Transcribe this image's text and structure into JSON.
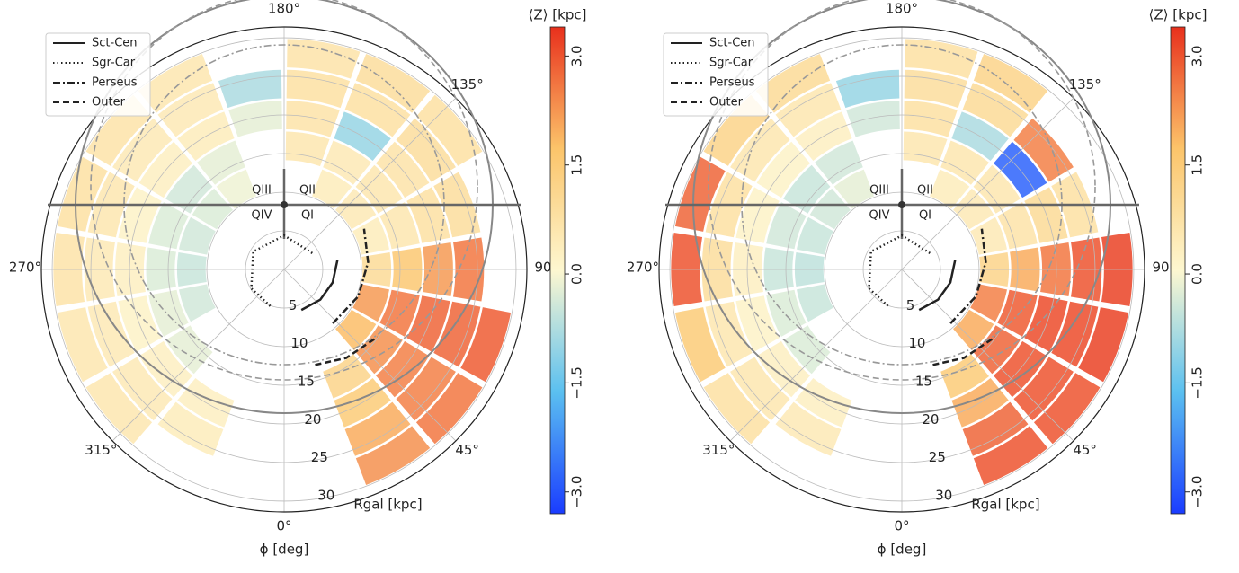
{
  "chart_data": [
    {
      "type": "polar-heatmap",
      "theta_label": "ϕ [deg]",
      "r_label": "Rgal [kpc]",
      "colorbar_label": "⟨Z⟩ [kpc]",
      "phi": [
        30,
        50,
        70,
        90,
        110,
        130,
        150,
        170,
        190,
        210,
        230,
        250,
        270,
        290,
        310,
        330
      ],
      "r": [
        12,
        16,
        20,
        24,
        28
      ],
      "values": [
        [
          null,
          1.2,
          1.5,
          2.0,
          2.3
        ],
        [
          1.8,
          2.3,
          2.5,
          2.5,
          2.6
        ],
        [
          2.2,
          2.6,
          2.8,
          2.8,
          2.9
        ],
        [
          1.0,
          1.6,
          2.2,
          2.6,
          null
        ],
        [
          0.4,
          0.6,
          0.8,
          0.9,
          null
        ],
        [
          0.5,
          0.6,
          0.7,
          0.9,
          0.8
        ],
        [
          0.4,
          0.5,
          -1.0,
          0.8,
          0.9
        ],
        [
          null,
          0.6,
          0.7,
          0.8,
          0.7
        ],
        [
          null,
          null,
          -0.2,
          -0.8,
          null
        ],
        [
          -0.1,
          -0.2,
          0.4,
          0.5,
          0.6
        ],
        [
          -0.3,
          -0.4,
          0.3,
          0.5,
          0.7
        ],
        [
          -0.4,
          -0.3,
          0.2,
          0.6,
          0.8
        ],
        [
          -0.5,
          -0.3,
          0.3,
          0.5,
          0.7
        ],
        [
          -0.4,
          -0.2,
          0.2,
          0.5,
          0.6
        ],
        [
          null,
          -0.2,
          0.3,
          0.5,
          0.6
        ],
        [
          null,
          null,
          0.3,
          0.4,
          null
        ]
      ],
      "rlim": [
        0,
        31.4
      ],
      "rticks": [
        5,
        10,
        15,
        20,
        25,
        30
      ],
      "thetaticks": [
        {
          "value": 0,
          "label": "0°"
        },
        {
          "value": 45,
          "label": "45°"
        },
        {
          "value": 90,
          "label": "90"
        },
        {
          "value": 135,
          "label": "135°"
        },
        {
          "value": 180,
          "label": "180°"
        },
        {
          "value": 270,
          "label": "270°"
        },
        {
          "value": 315,
          "label": "315°"
        }
      ],
      "clim": [
        -3.3,
        3.4
      ],
      "cticks": [
        {
          "value": -3.0,
          "label": "−3.0"
        },
        {
          "value": -1.5,
          "label": "−1.5"
        },
        {
          "value": 0,
          "label": "0.0"
        },
        {
          "value": 1.5,
          "label": "1.5"
        },
        {
          "value": 3.0,
          "label": "3.0"
        }
      ],
      "colormap": [
        "#1a3cff",
        "#5bc0f0",
        "#fdf7d0",
        "#fcc46a",
        "#e8301c"
      ],
      "quadrants": [
        "QIII",
        "QII",
        "QIV",
        "QI"
      ],
      "grid": true,
      "arms": [
        {
          "name": "Sct-Cen",
          "linestyle": "solid",
          "phi": [
            23,
            50,
            75,
            100
          ],
          "r": [
            5.7,
            6.1,
            6.5,
            7.0
          ]
        },
        {
          "name": "Sgr-Car",
          "linestyle": "dotted",
          "phi": [
            120,
            180,
            240,
            300,
            340
          ],
          "r": [
            4.2,
            4.4,
            4.6,
            4.9,
            5.1
          ]
        },
        {
          "name": "Perseus",
          "linestyle": "dashdot",
          "phi": [
            42,
            70,
            95,
            117
          ],
          "r": [
            9.4,
            10.2,
            10.9,
            11.6
          ]
        },
        {
          "name": "Outer",
          "linestyle": "dashed",
          "phi": [
            18,
            35,
            54
          ],
          "r": [
            13.0,
            14.0,
            14.9
          ]
        }
      ]
    },
    {
      "type": "polar-heatmap",
      "theta_label": "ϕ [deg]",
      "r_label": "Rgal [kpc]",
      "colorbar_label": "⟨Z⟩ [kpc]",
      "phi": [
        30,
        50,
        70,
        90,
        110,
        130,
        150,
        170,
        190,
        210,
        230,
        250,
        270,
        290,
        310,
        330
      ],
      "r": [
        12,
        16,
        20,
        24,
        28
      ],
      "values": [
        [
          null,
          1.5,
          2.0,
          2.8,
          3.0
        ],
        [
          2.0,
          2.8,
          3.0,
          3.0,
          3.0
        ],
        [
          2.5,
          2.9,
          3.1,
          3.1,
          3.2
        ],
        [
          1.2,
          2.0,
          2.6,
          3.0,
          3.2
        ],
        [
          0.5,
          0.7,
          1.0,
          0.8,
          null
        ],
        [
          0.5,
          0.6,
          -2.8,
          2.5,
          null
        ],
        [
          0.4,
          0.6,
          -0.8,
          1.0,
          1.2
        ],
        [
          null,
          0.6,
          0.8,
          0.9,
          0.8
        ],
        [
          null,
          null,
          -0.4,
          -1.0,
          null
        ],
        [
          -0.2,
          -0.4,
          0.3,
          0.6,
          1.0
        ],
        [
          -0.4,
          -0.5,
          0.2,
          0.6,
          1.2
        ],
        [
          -0.5,
          -0.4,
          0.2,
          0.8,
          2.8
        ],
        [
          -0.6,
          -0.5,
          0.3,
          0.9,
          3.0
        ],
        [
          -0.5,
          -0.3,
          0.2,
          0.6,
          1.5
        ],
        [
          null,
          -0.3,
          0.3,
          0.6,
          0.8
        ],
        [
          null,
          null,
          0.3,
          0.5,
          null
        ]
      ],
      "rlim": [
        0,
        31.4
      ],
      "rticks": [
        5,
        10,
        15,
        20,
        25,
        30
      ],
      "thetaticks": [
        {
          "value": 0,
          "label": "0°"
        },
        {
          "value": 45,
          "label": "45°"
        },
        {
          "value": 90,
          "label": "90"
        },
        {
          "value": 135,
          "label": "135°"
        },
        {
          "value": 180,
          "label": "180°"
        },
        {
          "value": 270,
          "label": "270°"
        },
        {
          "value": 315,
          "label": "315°"
        }
      ],
      "clim": [
        -3.3,
        3.4
      ],
      "cticks": [
        {
          "value": -3.0,
          "label": "−3.0"
        },
        {
          "value": -1.5,
          "label": "−1.5"
        },
        {
          "value": 0,
          "label": "0.0"
        },
        {
          "value": 1.5,
          "label": "1.5"
        },
        {
          "value": 3.0,
          "label": "3.0"
        }
      ],
      "colormap": [
        "#1a3cff",
        "#5bc0f0",
        "#fdf7d0",
        "#fcc46a",
        "#e8301c"
      ],
      "quadrants": [
        "QIII",
        "QII",
        "QIV",
        "QI"
      ],
      "grid": true,
      "arms": [
        {
          "name": "Sct-Cen",
          "linestyle": "solid",
          "phi": [
            23,
            50,
            75,
            100
          ],
          "r": [
            5.7,
            6.1,
            6.5,
            7.0
          ]
        },
        {
          "name": "Sgr-Car",
          "linestyle": "dotted",
          "phi": [
            120,
            180,
            240,
            300,
            340
          ],
          "r": [
            4.2,
            4.4,
            4.6,
            4.9,
            5.1
          ]
        },
        {
          "name": "Perseus",
          "linestyle": "dashdot",
          "phi": [
            42,
            70,
            95,
            117
          ],
          "r": [
            9.4,
            10.2,
            10.9,
            11.6
          ]
        },
        {
          "name": "Outer",
          "linestyle": "dashed",
          "phi": [
            18,
            35,
            54
          ],
          "r": [
            13.0,
            14.0,
            14.9
          ]
        }
      ]
    }
  ]
}
